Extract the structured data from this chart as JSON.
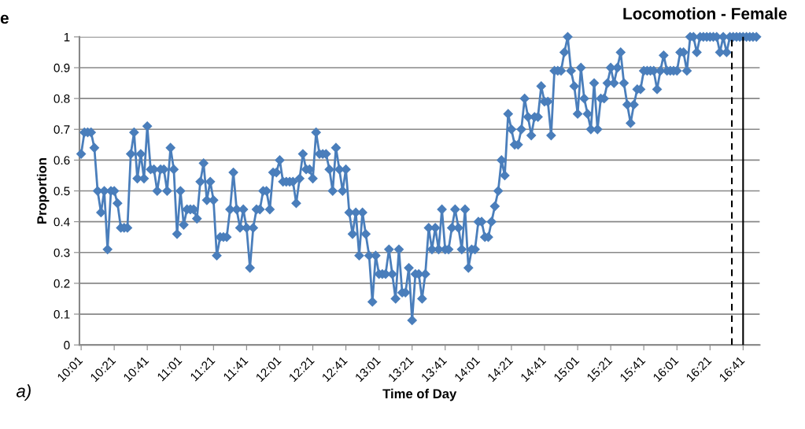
{
  "chart_data": {
    "type": "line",
    "title": "Locomotion - Female",
    "xlabel": "Time of Day",
    "ylabel": "Proportion",
    "annotations": [
      "e",
      "a)"
    ],
    "x": [
      10.017,
      10.05,
      10.083,
      10.117,
      10.15,
      10.183,
      10.217,
      10.25,
      10.283,
      10.317,
      10.35,
      10.383,
      10.417,
      10.45,
      10.483,
      10.517,
      10.55,
      10.583,
      10.617,
      10.65,
      10.683,
      10.717,
      10.75,
      10.783,
      10.817,
      10.85,
      10.883,
      10.917,
      10.95,
      10.983,
      11.017,
      11.05,
      11.083,
      11.117,
      11.15,
      11.183,
      11.217,
      11.25,
      11.283,
      11.317,
      11.35,
      11.383,
      11.417,
      11.45,
      11.483,
      11.517,
      11.55,
      11.583,
      11.617,
      11.65,
      11.683,
      11.717,
      11.75,
      11.783,
      11.817,
      11.85,
      11.883,
      11.917,
      11.95,
      11.983,
      12.017,
      12.05,
      12.083,
      12.117,
      12.15,
      12.183,
      12.217,
      12.25,
      12.283,
      12.317,
      12.35,
      12.383,
      12.417,
      12.45,
      12.483,
      12.517,
      12.55,
      12.583,
      12.617,
      12.65,
      12.683,
      12.717,
      12.75,
      12.783,
      12.817,
      12.85,
      12.883,
      12.917,
      12.95,
      12.983,
      13.017,
      13.05,
      13.083,
      13.117,
      13.15,
      13.183,
      13.217,
      13.25,
      13.283,
      13.317,
      13.35,
      13.383,
      13.417,
      13.45,
      13.483,
      13.517,
      13.55,
      13.583,
      13.617,
      13.65,
      13.683,
      13.717,
      13.75,
      13.783,
      13.817,
      13.85,
      13.883,
      13.917,
      13.95,
      13.983,
      14.017,
      14.05,
      14.083,
      14.117,
      14.15,
      14.183,
      14.217,
      14.25,
      14.283,
      14.317,
      14.35,
      14.383,
      14.417,
      14.45,
      14.483,
      14.517,
      14.55,
      14.583,
      14.617,
      14.65,
      14.683,
      14.717,
      14.75,
      14.783,
      14.817,
      14.85,
      14.883,
      14.917,
      14.95,
      14.983,
      15.017,
      15.05,
      15.083,
      15.117,
      15.15,
      15.183,
      15.217,
      15.25,
      15.283,
      15.317,
      15.35,
      15.383,
      15.417,
      15.45,
      15.483,
      15.517,
      15.55,
      15.583,
      15.617,
      15.65,
      15.683,
      15.717,
      15.75,
      15.783,
      15.817,
      15.85,
      15.883,
      15.917,
      15.95,
      15.983,
      16.017,
      16.05,
      16.083,
      16.117,
      16.15,
      16.183,
      16.217,
      16.25,
      16.283,
      16.317,
      16.35,
      16.383,
      16.417,
      16.45,
      16.483,
      16.517,
      16.55,
      16.583,
      16.617,
      16.65,
      16.683,
      16.717,
      16.75,
      16.783,
      16.817
    ],
    "series": [
      {
        "color": "#4a7ebb",
        "values": [
          0.62,
          0.69,
          0.69,
          0.69,
          0.64,
          0.5,
          0.43,
          0.5,
          0.31,
          0.5,
          0.5,
          0.46,
          0.38,
          0.38,
          0.38,
          0.62,
          0.69,
          0.54,
          0.62,
          0.54,
          0.71,
          0.57,
          0.57,
          0.5,
          0.57,
          0.57,
          0.5,
          0.64,
          0.57,
          0.36,
          0.5,
          0.39,
          0.44,
          0.44,
          0.44,
          0.41,
          0.53,
          0.59,
          0.47,
          0.53,
          0.47,
          0.29,
          0.35,
          0.35,
          0.35,
          0.44,
          0.56,
          0.44,
          0.38,
          0.44,
          0.38,
          0.25,
          0.38,
          0.44,
          0.44,
          0.5,
          0.5,
          0.44,
          0.56,
          0.56,
          0.6,
          0.53,
          0.53,
          0.53,
          0.53,
          0.46,
          0.54,
          0.62,
          0.57,
          0.57,
          0.54,
          0.69,
          0.62,
          0.62,
          0.62,
          0.57,
          0.5,
          0.64,
          0.57,
          0.5,
          0.57,
          0.43,
          0.36,
          0.43,
          0.29,
          0.43,
          0.36,
          0.29,
          0.14,
          0.29,
          0.23,
          0.23,
          0.23,
          0.31,
          0.23,
          0.15,
          0.31,
          0.17,
          0.17,
          0.25,
          0.08,
          0.23,
          0.23,
          0.15,
          0.23,
          0.38,
          0.31,
          0.38,
          0.31,
          0.44,
          0.31,
          0.31,
          0.38,
          0.44,
          0.38,
          0.31,
          0.44,
          0.25,
          0.31,
          0.31,
          0.4,
          0.4,
          0.35,
          0.35,
          0.4,
          0.45,
          0.5,
          0.6,
          0.55,
          0.75,
          0.7,
          0.65,
          0.65,
          0.7,
          0.8,
          0.74,
          0.68,
          0.74,
          0.74,
          0.84,
          0.79,
          0.79,
          0.68,
          0.89,
          0.89,
          0.89,
          0.95,
          1,
          0.89,
          0.84,
          0.75,
          0.9,
          0.8,
          0.75,
          0.7,
          0.85,
          0.7,
          0.8,
          0.8,
          0.85,
          0.9,
          0.85,
          0.9,
          0.95,
          0.85,
          0.78,
          0.72,
          0.78,
          0.83,
          0.83,
          0.89,
          0.89,
          0.89,
          0.89,
          0.83,
          0.89,
          0.94,
          0.89,
          0.89,
          0.89,
          0.89,
          0.95,
          0.95,
          0.89,
          1,
          1,
          0.95,
          1,
          1,
          1,
          1,
          1,
          1,
          0.95,
          1,
          0.95,
          1,
          1,
          1,
          1,
          1,
          1,
          1,
          1,
          1
        ]
      }
    ],
    "xlim": [
      10.0,
      16.85
    ],
    "xticks": [
      {
        "value": 10.017,
        "label": "10:01"
      },
      {
        "value": 10.35,
        "label": "10:21"
      },
      {
        "value": 10.683,
        "label": "10:41"
      },
      {
        "value": 11.017,
        "label": "11:01"
      },
      {
        "value": 11.35,
        "label": "11:21"
      },
      {
        "value": 11.683,
        "label": "11:41"
      },
      {
        "value": 12.017,
        "label": "12:01"
      },
      {
        "value": 12.35,
        "label": "12:21"
      },
      {
        "value": 12.683,
        "label": "12:41"
      },
      {
        "value": 13.017,
        "label": "13:01"
      },
      {
        "value": 13.35,
        "label": "13:21"
      },
      {
        "value": 13.683,
        "label": "13:41"
      },
      {
        "value": 14.017,
        "label": "14:01"
      },
      {
        "value": 14.35,
        "label": "14:21"
      },
      {
        "value": 14.683,
        "label": "14:41"
      },
      {
        "value": 15.017,
        "label": "15:01"
      },
      {
        "value": 15.35,
        "label": "15:21"
      },
      {
        "value": 15.683,
        "label": "15:41"
      },
      {
        "value": 16.017,
        "label": "16:01"
      },
      {
        "value": 16.35,
        "label": "16:21"
      },
      {
        "value": 16.683,
        "label": "16:41"
      }
    ],
    "ylim": [
      0,
      1
    ],
    "yticks": [
      0,
      0.1,
      0.2,
      0.3,
      0.4,
      0.5,
      0.6,
      0.7,
      0.8,
      0.9,
      1
    ],
    "ref_lines": [
      {
        "axis": "x",
        "value": 16.57,
        "color": "#000000",
        "line_style": "dashed"
      },
      {
        "axis": "x",
        "value": 16.683,
        "color": "#000000",
        "line_style": "solid"
      }
    ],
    "grid": "y",
    "legend": false,
    "marker": "diamond",
    "line_style": "solid"
  }
}
